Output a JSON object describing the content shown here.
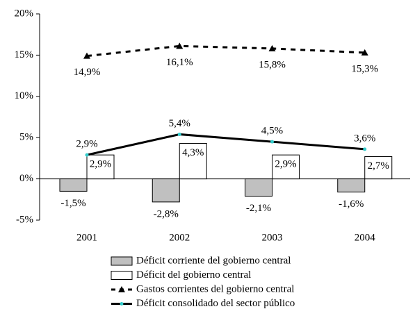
{
  "chart_data": {
    "type": "bar",
    "categories": [
      "2001",
      "2002",
      "2003",
      "2004"
    ],
    "ylim": [
      -5,
      20
    ],
    "yticks": [
      {
        "value": -5,
        "label": "-5%"
      },
      {
        "value": 0,
        "label": "0%"
      },
      {
        "value": 5,
        "label": "5%"
      },
      {
        "value": 10,
        "label": "10%"
      },
      {
        "value": 15,
        "label": "15%"
      },
      {
        "value": 20,
        "label": "20%"
      }
    ],
    "legend": "bottom",
    "series": [
      {
        "name": "Déficit corriente del gobierno central",
        "type": "bar",
        "color": "#c0c0c0",
        "values": [
          -1.5,
          -2.8,
          -2.1,
          -1.6
        ],
        "value_labels": [
          "-1,5%",
          "-2,8%",
          "-2,1%",
          "-1,6%"
        ]
      },
      {
        "name": "Déficit del gobierno central",
        "type": "bar",
        "color": "#ffffff",
        "values": [
          2.9,
          4.3,
          2.9,
          2.7
        ],
        "value_labels": [
          "2,9%",
          "4,3%",
          "2,9%",
          "2,7%"
        ]
      },
      {
        "name": "Gastos corrientes del gobierno central",
        "type": "line",
        "dashed": true,
        "marker": "triangle",
        "color": "#000000",
        "values": [
          14.9,
          16.1,
          15.8,
          15.3
        ],
        "value_labels": [
          "14,9%",
          "16,1%",
          "15,8%",
          "15,3%"
        ]
      },
      {
        "name": "Déficit consolidado del sector público",
        "type": "line",
        "dashed": false,
        "marker": "dot",
        "marker_color": "#33cccc",
        "color": "#000000",
        "values": [
          2.9,
          5.4,
          4.5,
          3.6
        ],
        "value_labels": [
          "2,9%",
          "5,4%",
          "4,5%",
          "3,6%"
        ]
      }
    ]
  }
}
